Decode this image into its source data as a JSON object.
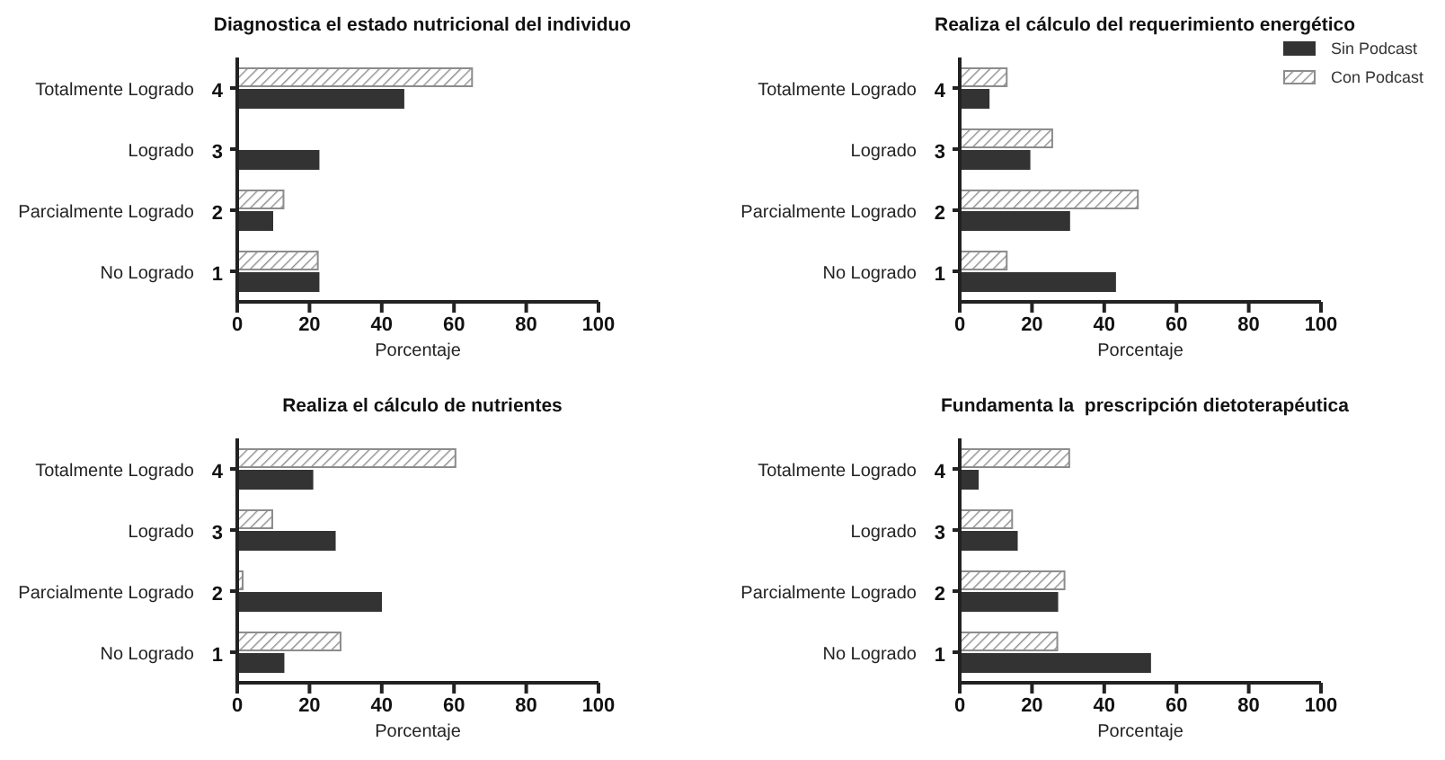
{
  "chart_data": [
    {
      "type": "bar",
      "orientation": "horizontal",
      "title": "Diagnostica el estado nutricional del individuo",
      "xlabel": "Porcentaje",
      "categories": [
        "Totalmente Logrado",
        "Logrado",
        "Parcialmente Logrado",
        "No Logrado"
      ],
      "xlim": [
        0,
        100
      ],
      "xticks": [
        0,
        20,
        40,
        60,
        80,
        100
      ],
      "grid": false,
      "legend": false,
      "annotations": [
        "4",
        "3",
        "2",
        "1"
      ],
      "series": [
        {
          "color": "#333333",
          "values": [
            46,
            22.5,
            9.7,
            22.5
          ]
        },
        {
          "color": "#8c8c8c",
          "values": [
            65,
            0,
            12.8,
            22.3
          ]
        }
      ]
    },
    {
      "type": "bar",
      "orientation": "horizontal",
      "title": "Realiza el cálculo del requerimiento energético",
      "xlabel": "Porcentaje",
      "categories": [
        "Totalmente Logrado",
        "Logrado",
        "Parcialmente Logrado",
        "No Logrado"
      ],
      "xlim": [
        0,
        100
      ],
      "xticks": [
        0,
        20,
        40,
        60,
        80,
        100
      ],
      "grid": false,
      "legend": "top right",
      "annotations": [
        "4",
        "3",
        "2",
        "1"
      ],
      "series": [
        {
          "name": "Sin Podcast",
          "color": "#333333",
          "values": [
            8,
            19.3,
            30.3,
            43
          ]
        },
        {
          "name": "Con Podcast",
          "color": "#8c8c8c",
          "values": [
            13,
            25.6,
            49.3,
            13
          ]
        }
      ]
    },
    {
      "type": "bar",
      "orientation": "horizontal",
      "title": "Realiza el cálculo de nutrientes",
      "xlabel": "Porcentaje",
      "categories": [
        "Totalmente Logrado",
        "Logrado",
        "Parcialmente Logrado",
        "No Logrado"
      ],
      "xlim": [
        0,
        100
      ],
      "xticks": [
        0,
        20,
        40,
        60,
        80,
        100
      ],
      "grid": false,
      "legend": false,
      "annotations": [
        "4",
        "3",
        "2",
        "1"
      ],
      "series": [
        {
          "color": "#333333",
          "values": [
            20.8,
            27,
            39.8,
            12.8
          ]
        },
        {
          "color": "#8c8c8c",
          "values": [
            60.4,
            9.7,
            1.5,
            28.6
          ]
        }
      ]
    },
    {
      "type": "bar",
      "orientation": "horizontal",
      "title": "Fundamenta la  prescripción dietoterapéutica",
      "xlabel": "Porcentaje",
      "categories": [
        "Totalmente Logrado",
        "Logrado",
        "Parcialmente Logrado",
        "No Logrado"
      ],
      "xlim": [
        0,
        100
      ],
      "xticks": [
        0,
        20,
        40,
        60,
        80,
        100
      ],
      "grid": false,
      "legend": false,
      "annotations": [
        "4",
        "3",
        "2",
        "1"
      ],
      "series": [
        {
          "color": "#333333",
          "values": [
            5,
            15.8,
            27,
            52.7
          ]
        },
        {
          "color": "#8c8c8c",
          "values": [
            30.3,
            14.5,
            29,
            27
          ]
        }
      ]
    }
  ]
}
